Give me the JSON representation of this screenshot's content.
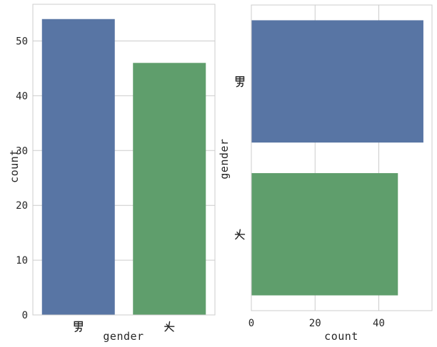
{
  "figure": {
    "background": "#ffffff",
    "text_color": "#262626",
    "grid_color": "#cccccc",
    "spine_color": "#cccccc"
  },
  "chart_data": [
    {
      "type": "bar",
      "orientation": "vertical",
      "title": "",
      "xlabel": "gender",
      "ylabel": "count",
      "categories": [
        "男",
        "女"
      ],
      "values": [
        54,
        46
      ],
      "bar_colors": [
        "#5875a4",
        "#5f9e6c"
      ],
      "ylim": [
        0,
        56.7
      ],
      "yticks": [
        0,
        10,
        20,
        30,
        40,
        50
      ],
      "bar_width_fraction": 0.8,
      "grid": "horizontal",
      "legend": "none"
    },
    {
      "type": "bar",
      "orientation": "horizontal",
      "title": "",
      "xlabel": "count",
      "ylabel": "gender",
      "categories": [
        "男",
        "女"
      ],
      "values": [
        54,
        46
      ],
      "bar_colors": [
        "#5875a4",
        "#5f9e6c"
      ],
      "xlim": [
        0,
        56.7
      ],
      "xticks": [
        0,
        20,
        40
      ],
      "bar_width_fraction": 0.8,
      "grid": "vertical",
      "legend": "none"
    }
  ]
}
